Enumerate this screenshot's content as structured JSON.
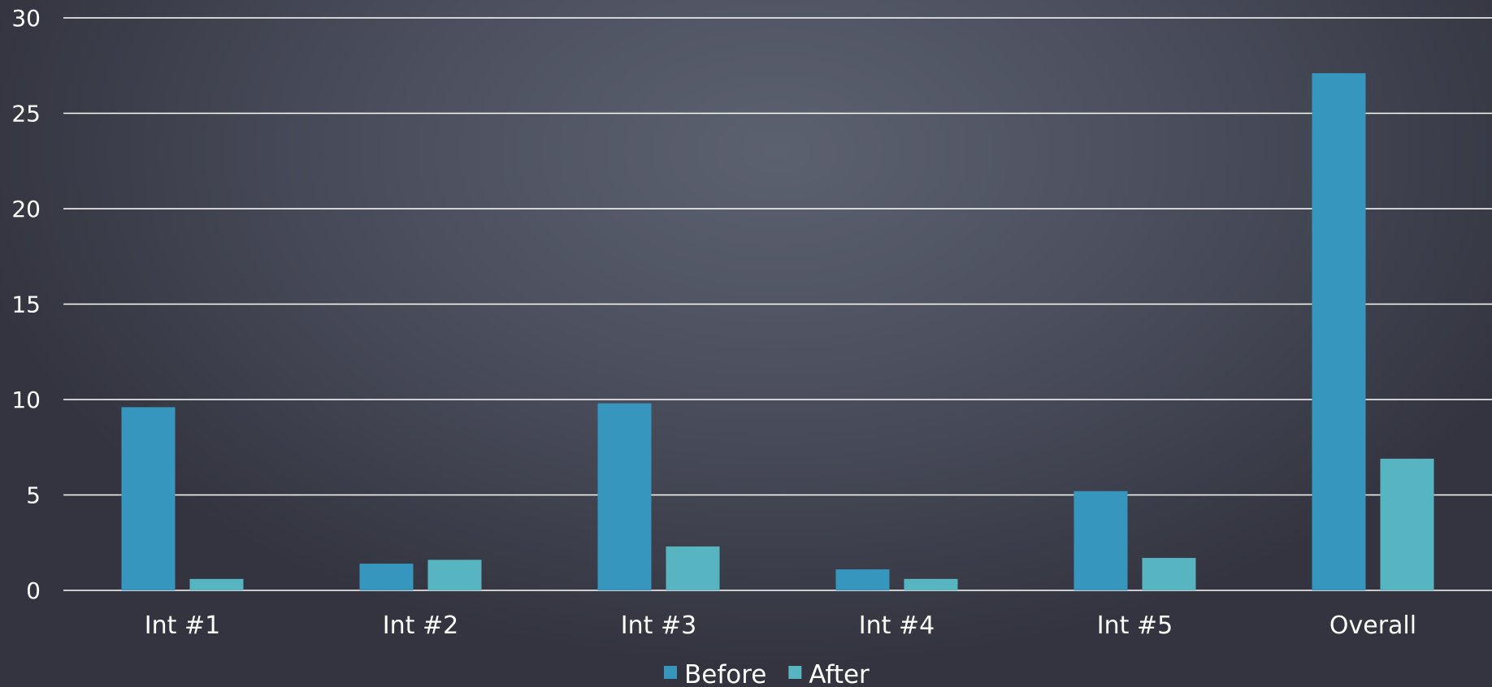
{
  "chart_data": {
    "type": "bar",
    "categories": [
      "Int #1",
      "Int #2",
      "Int #3",
      "Int #4",
      "Int #5",
      "Overall"
    ],
    "series": [
      {
        "name": "Before",
        "color": "#3696be",
        "values": [
          9.6,
          1.4,
          9.8,
          1.1,
          5.2,
          27.1
        ]
      },
      {
        "name": "After",
        "color": "#56b5c0",
        "values": [
          0.6,
          1.6,
          2.3,
          0.6,
          1.7,
          6.9
        ]
      }
    ],
    "ylim": [
      0,
      30
    ],
    "yticks": [
      0,
      5,
      10,
      15,
      20,
      25,
      30
    ],
    "grid": true,
    "legend_position": "bottom",
    "title": "",
    "xlabel": "",
    "ylabel": ""
  }
}
